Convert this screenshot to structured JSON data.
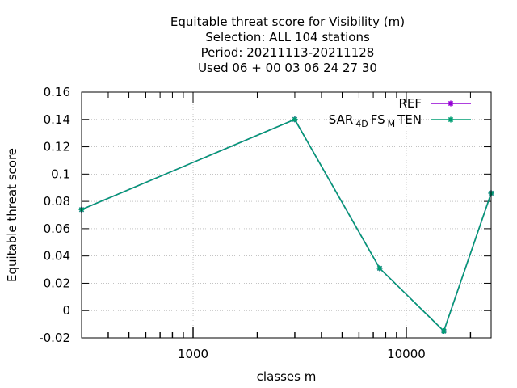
{
  "chart_data": {
    "type": "line",
    "title_lines": [
      "Equitable threat score  for Visibility (m)",
      "Selection: ALL    104 stations",
      "Period: 20211113-20211128",
      "Used  06 + 00 03 06 24 27 30"
    ],
    "xlabel": "classes m",
    "ylabel": "Equitable threat score",
    "xscale": "log",
    "xlim": [
      300,
      25000
    ],
    "ylim": [
      -0.02,
      0.16
    ],
    "x_ticks": [
      1000,
      10000
    ],
    "x_tick_labels": [
      "1000",
      "10000"
    ],
    "y_ticks": [
      -0.02,
      0,
      0.02,
      0.04,
      0.06,
      0.08,
      0.1,
      0.12,
      0.14,
      0.16
    ],
    "y_tick_labels": [
      "-0.02",
      "0",
      "0.02",
      "0.04",
      "0.06",
      "0.08",
      "0.1",
      "0.12",
      "0.14",
      "0.16"
    ],
    "grid": true,
    "legend_position": "top-right",
    "series": [
      {
        "name": "REF",
        "color": "#9400d3",
        "x": [
          300,
          3000,
          7500,
          15000,
          25000
        ],
        "y": [
          0.074,
          0.14,
          0.031,
          -0.015,
          0.086
        ]
      },
      {
        "name_parts": [
          {
            "text": "SAR",
            "sub": false
          },
          {
            "text": "4D",
            "sub": true
          },
          {
            "text": "FS",
            "sub": false
          },
          {
            "text": "M",
            "sub": true
          },
          {
            "text": "TEN",
            "sub": false
          }
        ],
        "color": "#009e73",
        "x": [
          300,
          3000,
          7500,
          15000,
          25000
        ],
        "y": [
          0.074,
          0.14,
          0.031,
          -0.015,
          0.086
        ]
      }
    ]
  }
}
